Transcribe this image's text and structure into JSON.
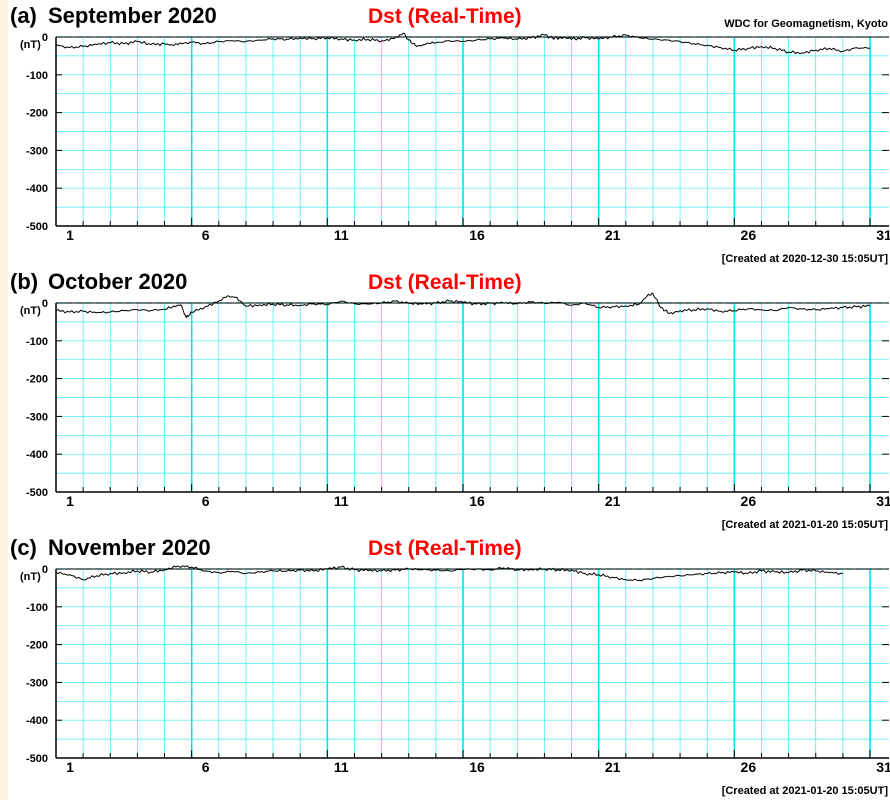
{
  "colors": {
    "grid": "#00e5ee",
    "trace": "#000000",
    "header_red": "#ff0000",
    "text": "#000000",
    "left_strip": "#fdf2dc"
  },
  "header_note": "WDC for Geomagnetism, Kyoto",
  "chart_data": [
    {
      "type": "line",
      "panel_label": "(a)",
      "title": "September  2020",
      "index_title": "Dst (Real-Time)",
      "ylabel": "(nT)",
      "ylim": [
        -500,
        0
      ],
      "yticks": [
        "0",
        "-100",
        "-200",
        "-300",
        "-400",
        "-500"
      ],
      "xlim": [
        1,
        31
      ],
      "xticks": [
        "1",
        "6",
        "11",
        "16",
        "21",
        "26",
        "31"
      ],
      "grid": true,
      "created": "[Created at 2020-12-30 15:05UT]",
      "series": [
        {
          "x": [
            1,
            1.5,
            2,
            2.5,
            3,
            3.5,
            4,
            4.5,
            5,
            5.3,
            5.6,
            6,
            6.5,
            7,
            7.5,
            8,
            8.5,
            9,
            9.5,
            10,
            10.5,
            11,
            11.5,
            12,
            12.5,
            13,
            13.4,
            13.8,
            14.0,
            14.3,
            14.6,
            15,
            15.5,
            16,
            16.5,
            17,
            17.5,
            18,
            18.5,
            19,
            19.3,
            19.6,
            20,
            20.5,
            21,
            21.5,
            22,
            22.5,
            23,
            23.5,
            24,
            24.5,
            25,
            25.5,
            26,
            26.5,
            27,
            27.5,
            28,
            28.5,
            29,
            29.5,
            30,
            30.5,
            31
          ],
          "y": [
            -22,
            -28,
            -25,
            -20,
            -15,
            -18,
            -12,
            -20,
            -18,
            -22,
            -16,
            -14,
            -18,
            -12,
            -10,
            -12,
            -8,
            -5,
            -6,
            -3,
            -4,
            -2,
            -5,
            -8,
            -6,
            -10,
            -4,
            10,
            -8,
            -25,
            -20,
            -15,
            -10,
            -12,
            -8,
            -5,
            -3,
            -6,
            -2,
            5,
            -3,
            -2,
            -6,
            -2,
            -5,
            0,
            5,
            -2,
            -6,
            -8,
            -12,
            -18,
            -22,
            -28,
            -35,
            -30,
            -25,
            -30,
            -40,
            -42,
            -35,
            -30,
            -38,
            -28,
            -30
          ]
        }
      ]
    },
    {
      "type": "line",
      "panel_label": "(b)",
      "title": "October  2020",
      "index_title": "Dst (Real-Time)",
      "ylabel": "(nT)",
      "ylim": [
        -500,
        0
      ],
      "yticks": [
        "0",
        "-100",
        "-200",
        "-300",
        "-400",
        "-500"
      ],
      "xlim": [
        1,
        31
      ],
      "xticks": [
        "1",
        "6",
        "11",
        "16",
        "21",
        "26",
        "31"
      ],
      "grid": true,
      "created": "[Created at 2021-01-20 15:05UT]",
      "series": [
        {
          "x": [
            1,
            1.5,
            2,
            2.5,
            3,
            3.5,
            4,
            4.5,
            5,
            5.3,
            5.6,
            5.8,
            6,
            6.5,
            7,
            7.3,
            7.6,
            8,
            8.5,
            9,
            9.5,
            10,
            10.5,
            11,
            11.5,
            12,
            12.5,
            13,
            13.5,
            14,
            14.5,
            15,
            15.5,
            16,
            16.5,
            17,
            17.5,
            18,
            18.5,
            19,
            19.5,
            20,
            20.5,
            21,
            21.5,
            22,
            22.5,
            22.8,
            23.0,
            23.3,
            23.6,
            24,
            24.5,
            25,
            25.5,
            26,
            26.5,
            27,
            27.5,
            28,
            28.5,
            29,
            29.5,
            30,
            30.5,
            31
          ],
          "y": [
            -20,
            -24,
            -22,
            -26,
            -24,
            -20,
            -18,
            -20,
            -16,
            -10,
            -5,
            -38,
            -25,
            -10,
            5,
            18,
            15,
            -8,
            -5,
            -3,
            -5,
            -6,
            -2,
            -4,
            5,
            -2,
            -3,
            0,
            5,
            -1,
            -3,
            0,
            5,
            2,
            -3,
            -1,
            0,
            -2,
            3,
            -1,
            2,
            -6,
            0,
            -12,
            -10,
            -8,
            -3,
            20,
            25,
            -12,
            -28,
            -20,
            -18,
            -15,
            -22,
            -20,
            -15,
            -18,
            -20,
            -12,
            -16,
            -18,
            -15,
            -12,
            -10,
            -8
          ]
        }
      ]
    },
    {
      "type": "line",
      "panel_label": "(c)",
      "title": "November  2020",
      "index_title": "Dst (Real-Time)",
      "ylabel": "(nT)",
      "ylim": [
        -500,
        0
      ],
      "yticks": [
        "0",
        "-100",
        "-200",
        "-300",
        "-400",
        "-500"
      ],
      "xlim": [
        1,
        30
      ],
      "xticks": [
        "1",
        "6",
        "11",
        "16",
        "21",
        "26",
        "31"
      ],
      "grid": true,
      "created": "[Created at 2021-01-20 15:05UT]",
      "series": [
        {
          "x": [
            1,
            1.5,
            2,
            2.5,
            3,
            3.5,
            4,
            4.5,
            5,
            5.5,
            6,
            6.5,
            7,
            7.5,
            8,
            8.5,
            9,
            9.5,
            10,
            10.5,
            11,
            11.5,
            12,
            12.5,
            13,
            13.5,
            14,
            14.5,
            15,
            15.5,
            16,
            16.5,
            17,
            17.5,
            18,
            18.5,
            19,
            19.5,
            20,
            20.5,
            21,
            21.5,
            22,
            22.5,
            23,
            23.5,
            24,
            24.5,
            25,
            25.5,
            26,
            26.5,
            27,
            27.5,
            28,
            28.5,
            29,
            29.5,
            30
          ],
          "y": [
            -10,
            -15,
            -28,
            -18,
            -12,
            -10,
            -5,
            -8,
            -2,
            8,
            5,
            -5,
            -10,
            -6,
            -12,
            -8,
            -5,
            -6,
            -3,
            -5,
            0,
            5,
            -2,
            -4,
            -5,
            -3,
            0,
            -2,
            -3,
            -5,
            -1,
            0,
            -2,
            3,
            -2,
            -1,
            0,
            -2,
            -3,
            -12,
            -15,
            -22,
            -28,
            -30,
            -25,
            -20,
            -18,
            -15,
            -12,
            -10,
            -8,
            -12,
            -5,
            -8,
            -10,
            -3,
            -5,
            -10,
            -12
          ]
        }
      ]
    }
  ]
}
